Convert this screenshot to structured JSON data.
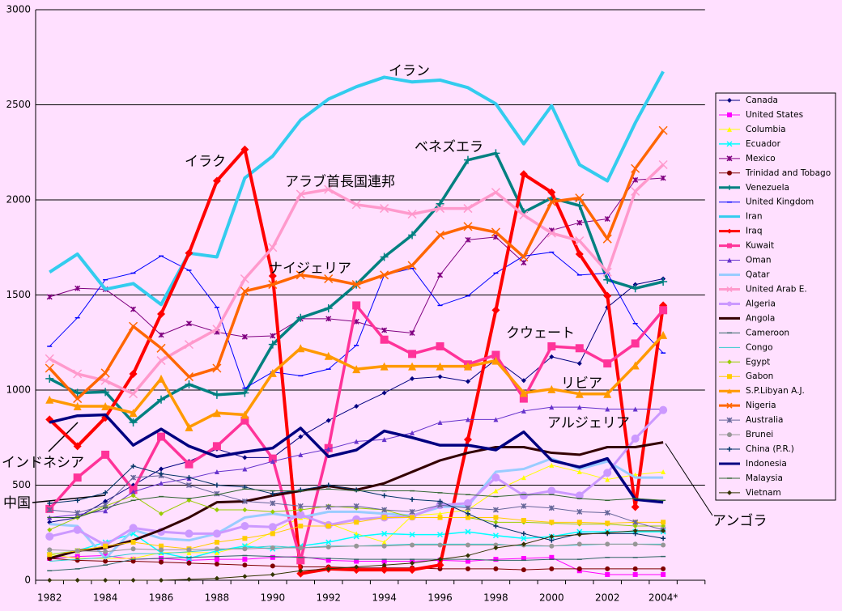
{
  "chart_data": {
    "type": "line",
    "categories": [
      "1982",
      null,
      "1984",
      null,
      "1986",
      null,
      "1988",
      null,
      "1990",
      null,
      "1992",
      null,
      "1994",
      null,
      "1996",
      null,
      "1998",
      null,
      "2000",
      null,
      "2002",
      null,
      "2004*"
    ],
    "ylim": [
      0,
      3000
    ],
    "yticks": [
      0,
      500,
      1000,
      1500,
      2000,
      2500,
      3000
    ],
    "grid": true,
    "series": [
      {
        "name": "Canada",
        "color": "#000080",
        "values": [
          305,
          330,
          415,
          500,
          585,
          625,
          690,
          645,
          645,
          755,
          840,
          915,
          985,
          1060,
          1070,
          1045,
          1160,
          1050,
          1175,
          1140,
          1435,
          1555,
          1585
        ]
      },
      {
        "name": "United States",
        "color": "#ff00ff",
        "values": [
          115,
          125,
          130,
          110,
          115,
          105,
          110,
          110,
          120,
          125,
          105,
          100,
          100,
          100,
          105,
          100,
          110,
          115,
          120,
          50,
          30,
          30,
          30
        ]
      },
      {
        "name": "Columbia",
        "color": "#ffff00",
        "values": [
          135,
          115,
          115,
          115,
          145,
          145,
          145,
          180,
          255,
          330,
          300,
          245,
          200,
          340,
          350,
          370,
          470,
          540,
          605,
          570,
          530,
          555,
          570
        ]
      },
      {
        "name": "Ecuador",
        "color": "#00ffff",
        "values": [
          135,
          155,
          200,
          245,
          145,
          115,
          155,
          180,
          165,
          180,
          200,
          230,
          245,
          240,
          240,
          255,
          235,
          220,
          230,
          255,
          255,
          255,
          255
        ]
      },
      {
        "name": "Mexico",
        "color": "#800080",
        "values": [
          1490,
          1535,
          1530,
          1425,
          1290,
          1350,
          1305,
          1280,
          1285,
          1375,
          1375,
          1360,
          1315,
          1300,
          1605,
          1790,
          1805,
          1670,
          1840,
          1880,
          1900,
          2105,
          2115
        ]
      },
      {
        "name": "Trinidad and Tobago",
        "color": "#800000",
        "values": [
          115,
          105,
          100,
          100,
          95,
          90,
          85,
          80,
          75,
          70,
          70,
          65,
          65,
          65,
          60,
          60,
          60,
          55,
          60,
          60,
          60,
          60,
          60
        ]
      },
      {
        "name": "Venezuela",
        "color": "#008080",
        "values": [
          1060,
          985,
          990,
          830,
          950,
          1030,
          975,
          985,
          1240,
          1380,
          1430,
          1555,
          1700,
          1815,
          1980,
          2210,
          2245,
          1935,
          2010,
          1970,
          1580,
          1535,
          1570
        ]
      },
      {
        "name": "United Kingdom",
        "color": "#0000ff",
        "values": [
          1230,
          1380,
          1580,
          1615,
          1705,
          1630,
          1435,
          1010,
          1095,
          1075,
          1110,
          1235,
          1605,
          1640,
          1445,
          1495,
          1615,
          1705,
          1725,
          1605,
          1615,
          1350,
          1195
        ]
      },
      {
        "name": "Iran",
        "color": "#33ccee",
        "values": [
          1620,
          1715,
          1530,
          1560,
          1450,
          1720,
          1700,
          2115,
          2230,
          2420,
          2530,
          2595,
          2645,
          2620,
          2630,
          2590,
          2505,
          2295,
          2495,
          2185,
          2100,
          2405,
          2675
        ]
      },
      {
        "name": "Iraq",
        "color": "#ff0000",
        "values": [
          845,
          705,
          855,
          1085,
          1400,
          1720,
          2100,
          2265,
          1600,
          35,
          60,
          55,
          55,
          55,
          80,
          740,
          1420,
          2135,
          2040,
          1715,
          1495,
          385,
          1445
        ]
      },
      {
        "name": "Kuwait",
        "color": "#ff3399",
        "values": [
          375,
          540,
          660,
          475,
          755,
          610,
          705,
          840,
          640,
          105,
          695,
          1445,
          1265,
          1190,
          1230,
          1135,
          1185,
          955,
          1230,
          1220,
          1140,
          1245,
          1420
        ]
      },
      {
        "name": "Oman",
        "color": "#6633cc",
        "values": [
          330,
          345,
          365,
          465,
          510,
          535,
          570,
          585,
          625,
          660,
          690,
          730,
          740,
          775,
          830,
          845,
          845,
          890,
          910,
          910,
          900,
          900,
          900
        ]
      },
      {
        "name": "Qatar",
        "color": "#99ccff",
        "values": [
          295,
          285,
          115,
          265,
          220,
          210,
          245,
          330,
          350,
          330,
          360,
          360,
          350,
          340,
          385,
          390,
          570,
          585,
          640,
          585,
          625,
          540,
          540
        ]
      },
      {
        "name": "United Arab E.",
        "color": "#ff99cc",
        "values": [
          1165,
          1085,
          1050,
          980,
          1155,
          1240,
          1320,
          1585,
          1750,
          2030,
          2055,
          1975,
          1955,
          1925,
          1955,
          1955,
          2040,
          1920,
          1825,
          1785,
          1620,
          2045,
          2185
        ]
      },
      {
        "name": "Algeria",
        "color": "#cc99ff",
        "values": [
          230,
          265,
          185,
          275,
          255,
          245,
          245,
          285,
          280,
          345,
          290,
          320,
          330,
          335,
          395,
          405,
          540,
          445,
          470,
          445,
          565,
          745,
          895
        ]
      },
      {
        "name": "Angola",
        "color": "#330000",
        "values": [
          115,
          155,
          170,
          210,
          265,
          330,
          410,
          415,
          445,
          470,
          495,
          475,
          510,
          570,
          630,
          670,
          700,
          700,
          670,
          660,
          700,
          700,
          725
        ]
      },
      {
        "name": "Cameroon",
        "color": "#336666",
        "values": [
          50,
          60,
          80,
          110,
          115,
          120,
          125,
          130,
          125,
          120,
          115,
          110,
          110,
          110,
          110,
          110,
          105,
          105,
          110,
          110,
          120,
          120,
          125
        ]
      },
      {
        "name": "Congo",
        "color": "#33cccc",
        "values": [
          100,
          110,
          120,
          140,
          140,
          150,
          160,
          170,
          180,
          170,
          180,
          180,
          185,
          190,
          190,
          190,
          190,
          180,
          180,
          185,
          190,
          190,
          190
        ]
      },
      {
        "name": "Egypt",
        "color": "#99cc00",
        "values": [
          265,
          330,
          390,
          445,
          350,
          420,
          370,
          370,
          360,
          370,
          390,
          380,
          370,
          330,
          330,
          330,
          305,
          305,
          300,
          295,
          295,
          285,
          285
        ]
      },
      {
        "name": "Gabon",
        "color": "#ffcc00",
        "values": [
          135,
          155,
          180,
          200,
          180,
          165,
          200,
          220,
          245,
          285,
          285,
          305,
          330,
          330,
          330,
          330,
          330,
          315,
          305,
          305,
          300,
          305,
          305
        ]
      },
      {
        "name": "S.P.Libyan A.J.",
        "color": "#ff9900",
        "values": [
          950,
          915,
          915,
          880,
          1060,
          805,
          880,
          870,
          1090,
          1220,
          1180,
          1110,
          1125,
          1125,
          1125,
          1125,
          1155,
          985,
          1005,
          980,
          980,
          1130,
          1290
        ]
      },
      {
        "name": "Nigeria",
        "color": "#ff6600",
        "values": [
          1115,
          955,
          1090,
          1335,
          1220,
          1070,
          1115,
          1520,
          1555,
          1605,
          1585,
          1555,
          1605,
          1655,
          1815,
          1860,
          1830,
          1700,
          1990,
          2010,
          1795,
          2165,
          2365
        ]
      },
      {
        "name": "Australia",
        "color": "#666699",
        "values": [
          370,
          355,
          395,
          540,
          550,
          500,
          455,
          415,
          405,
          390,
          385,
          390,
          370,
          360,
          395,
          380,
          370,
          390,
          380,
          360,
          355,
          305,
          265
        ]
      },
      {
        "name": "Brunei",
        "color": "#969696",
        "values": [
          160,
          155,
          150,
          165,
          160,
          160,
          165,
          165,
          170,
          170,
          175,
          180,
          180,
          185,
          185,
          185,
          185,
          185,
          180,
          190,
          190,
          190,
          185
        ]
      },
      {
        "name": "China (P.R.)",
        "color": "#003366",
        "values": [
          405,
          420,
          460,
          600,
          560,
          540,
          500,
          490,
          455,
          475,
          500,
          475,
          445,
          425,
          415,
          350,
          285,
          245,
          210,
          245,
          245,
          245,
          220
        ]
      },
      {
        "name": "Indonesia",
        "color": "#000080",
        "values": [
          830,
          865,
          870,
          710,
          795,
          705,
          650,
          675,
          695,
          800,
          650,
          685,
          785,
          750,
          710,
          710,
          685,
          780,
          630,
          595,
          640,
          425,
          410
        ]
      },
      {
        "name": "Malaysia",
        "color": "#336633",
        "values": [
          330,
          330,
          380,
          420,
          440,
          430,
          450,
          480,
          470,
          470,
          480,
          470,
          470,
          470,
          460,
          450,
          440,
          450,
          450,
          430,
          420,
          430,
          420
        ]
      },
      {
        "name": "Vietnam",
        "color": "#333300",
        "values": [
          0,
          0,
          0,
          0,
          0,
          5,
          10,
          20,
          30,
          50,
          60,
          70,
          80,
          90,
          110,
          130,
          170,
          190,
          230,
          240,
          250,
          260,
          260
        ]
      }
    ],
    "annotations": [
      "イラン",
      "ベネズエラ",
      "イラク",
      "アラブ首長国連邦",
      "ナイジェリア",
      "クウェート",
      "リビア",
      "アルジェリア",
      "インドネシア",
      "中国",
      "アンゴラ"
    ]
  }
}
